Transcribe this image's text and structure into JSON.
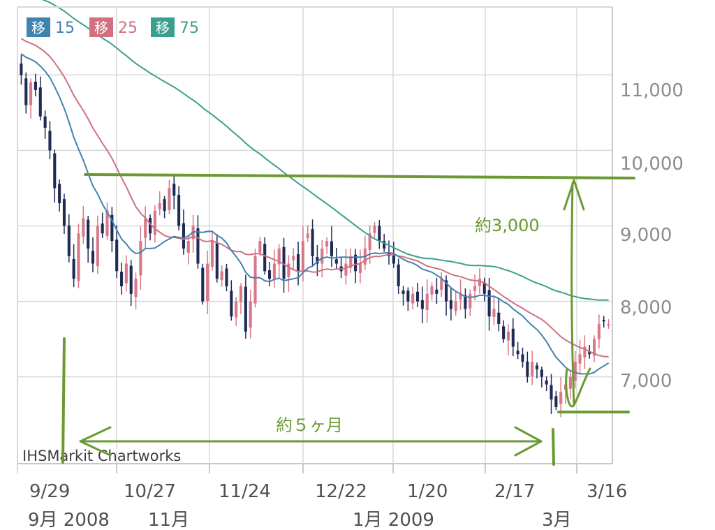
{
  "chart_data": {
    "type": "candlestick",
    "credit": "IHSMarkit Chartworks",
    "legend": [
      {
        "box": "移",
        "label": "15",
        "color": "#3f83b0"
      },
      {
        "box": "移",
        "label": "25",
        "color": "#d07080"
      },
      {
        "box": "移",
        "label": "75",
        "color": "#3aa08e"
      }
    ],
    "y_axis": {
      "ticks": [
        "11,000",
        "10,000",
        "9,000",
        "8,000",
        "7,000"
      ],
      "tick_values": [
        11000,
        10000,
        9000,
        8000,
        7000
      ],
      "range": [
        5850,
        11900
      ]
    },
    "x_axis": {
      "ticks": [
        "9/29",
        "10/27",
        "11/24",
        "12/22",
        "1/20",
        "2/17",
        "3/16"
      ],
      "months": [
        "9月 2008",
        "11月",
        "1月 2009",
        "3月"
      ]
    },
    "colors": {
      "up": "#d87888",
      "down": "#1f2a55",
      "grid": "#d9d9d9",
      "annotation": "#6a9a32"
    },
    "annotations": {
      "range_label": "約3,000",
      "duration_label": "約５ヶ月",
      "top_level": 9800,
      "bottom_level": 6550
    },
    "close_prices": [
      11000,
      10600,
      10900,
      10800,
      10450,
      10300,
      10000,
      9500,
      9300,
      9000,
      8600,
      8300,
      8900,
      9100,
      8700,
      8500,
      9000,
      8900,
      9200,
      8800,
      8400,
      8200,
      8500,
      8100,
      8300,
      8800,
      9100,
      8900,
      9200,
      9300,
      9200,
      9500,
      9400,
      9000,
      8700,
      8800,
      9000,
      8500,
      8000,
      8500,
      8800,
      8300,
      8400,
      8200,
      7800,
      8000,
      8200,
      7600,
      8000,
      8600,
      8800,
      8400,
      8300,
      8500,
      8700,
      8300,
      8500,
      8600,
      8400,
      8800,
      8900,
      8600,
      8500,
      8700,
      8800,
      8600,
      8500,
      8400,
      8500,
      8600,
      8400,
      8500,
      8700,
      8900,
      9000,
      8800,
      8700,
      8600,
      8500,
      8200,
      8100,
      8000,
      8100,
      8000,
      7900,
      8100,
      8200,
      8100,
      8300,
      8000,
      7900,
      8000,
      8100,
      7900,
      8100,
      8200,
      8300,
      8100,
      7800,
      7900,
      7700,
      7500,
      7600,
      7400,
      7300,
      7200,
      7000,
      7200,
      7100,
      7000,
      6900,
      6700,
      6600,
      6800,
      6900,
      7000,
      7200,
      7300,
      7400,
      7300,
      7500,
      7700,
      7750,
      7700
    ]
  }
}
